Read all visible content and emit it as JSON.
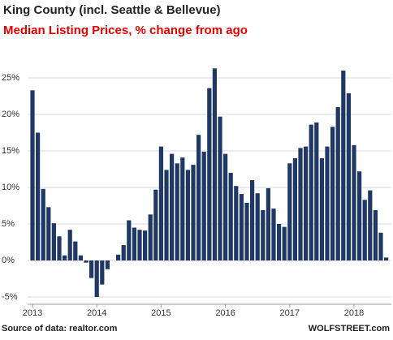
{
  "chart_data": {
    "type": "bar",
    "title": "King County (incl. Seattle & Bellevue)",
    "subtitle": "Median Listing Prices, % change from ago",
    "source": "Source of data: realtor.com",
    "watermark": "WOLFSTREET.com",
    "color": "#1f3864",
    "grid": true,
    "categories": [
      "2013",
      null,
      null,
      null,
      null,
      null,
      null,
      null,
      null,
      null,
      null,
      null,
      "2014",
      null,
      null,
      null,
      null,
      null,
      null,
      null,
      null,
      null,
      null,
      null,
      "2015",
      null,
      null,
      null,
      null,
      null,
      null,
      null,
      null,
      null,
      null,
      null,
      "2016",
      null,
      null,
      null,
      null,
      null,
      null,
      null,
      null,
      null,
      null,
      null,
      "2017",
      null,
      null,
      null,
      null,
      null,
      null,
      null,
      null,
      null,
      null,
      null,
      "2018",
      null,
      null,
      null,
      null,
      null,
      null
    ],
    "values": [
      23.3,
      17.5,
      9.8,
      7.3,
      5.1,
      3.3,
      0.7,
      4.2,
      2.6,
      0.7,
      -0.3,
      -2.4,
      -5.0,
      -3.3,
      -1.2,
      0.0,
      0.8,
      2.1,
      5.5,
      4.5,
      4.2,
      4.1,
      6.3,
      9.7,
      15.6,
      12.4,
      14.6,
      13.3,
      14.1,
      12.4,
      13.1,
      17.2,
      14.9,
      23.6,
      26.3,
      19.7,
      14.6,
      12.0,
      10.2,
      9.1,
      7.9,
      11.0,
      9.2,
      6.9,
      9.9,
      7.1,
      5.0,
      4.6,
      13.3,
      14.0,
      15.4,
      15.6,
      18.6,
      18.9,
      14.0,
      15.6,
      18.3,
      21.0,
      26.0,
      22.9,
      15.8,
      12.2,
      8.3,
      9.6,
      6.9,
      3.8,
      0.4
    ],
    "ylim": [
      -6,
      27.5
    ],
    "yticks": [
      {
        "value": -5,
        "label": "-5%"
      },
      {
        "value": 0,
        "label": "0%"
      },
      {
        "value": 5,
        "label": "5%"
      },
      {
        "value": 10,
        "label": "10%"
      },
      {
        "value": 15,
        "label": "15%"
      },
      {
        "value": 20,
        "label": "20%"
      },
      {
        "value": 25,
        "label": "25%"
      }
    ]
  }
}
